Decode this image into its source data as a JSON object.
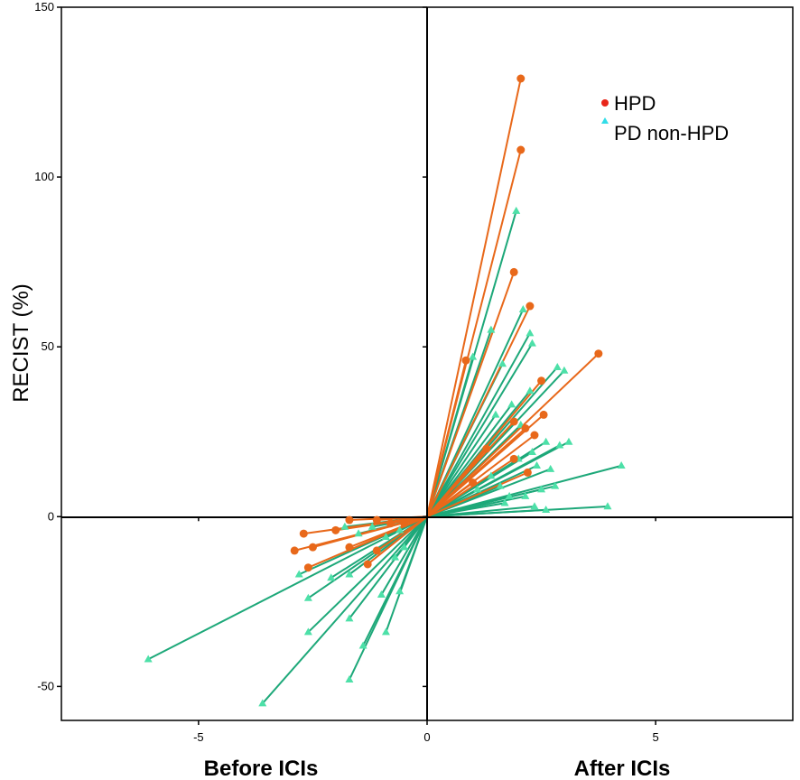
{
  "chart_data": {
    "type": "scatter",
    "title": "",
    "xlabel_left": "Before ICIs",
    "xlabel_right": "After ICIs",
    "ylabel": "RECIST (%)",
    "xlim": [
      -8,
      8
    ],
    "ylim": [
      -60,
      150
    ],
    "xticks": [
      -5,
      0,
      5
    ],
    "yticks": [
      -50,
      0,
      50,
      100,
      150
    ],
    "x_tick_labels": [
      "-5",
      "0",
      "5"
    ],
    "y_tick_labels": [
      "-50",
      "0",
      "50",
      "100",
      "150"
    ],
    "grid": false,
    "legend_position": "top-right",
    "series": [
      {
        "name": "HPD",
        "color": "#E8681A",
        "legend_color": "#E8261A",
        "marker": "circle",
        "before": [
          [
            -2.7,
            -5
          ],
          [
            -2.5,
            -9
          ],
          [
            -2.9,
            -10
          ],
          [
            -2.6,
            -15
          ],
          [
            -1.7,
            -9
          ],
          [
            -1.7,
            -1
          ],
          [
            -2.0,
            -4
          ],
          [
            -1.1,
            -1
          ],
          [
            -1.3,
            -14
          ],
          [
            -1.1,
            -10
          ],
          [
            -0.8,
            -2
          ],
          [
            -0.5,
            -2
          ]
        ],
        "after": [
          [
            2.05,
            129
          ],
          [
            2.05,
            108
          ],
          [
            1.9,
            72
          ],
          [
            2.25,
            62
          ],
          [
            0.85,
            46
          ],
          [
            3.75,
            48
          ],
          [
            2.5,
            40
          ],
          [
            1.9,
            28
          ],
          [
            2.55,
            30
          ],
          [
            2.15,
            26
          ],
          [
            2.35,
            24
          ],
          [
            1.9,
            17
          ],
          [
            2.2,
            13
          ],
          [
            1.3,
            20
          ],
          [
            1.0,
            10
          ]
        ]
      },
      {
        "name": "PD non-HPD",
        "color": "#1DA879",
        "marker_color": "#4DE0A8",
        "legend_color": "#32DDE8",
        "marker": "triangle",
        "before": [
          [
            -6.1,
            -42
          ],
          [
            -3.6,
            -55
          ],
          [
            -1.7,
            -48
          ],
          [
            -2.6,
            -34
          ],
          [
            -2.6,
            -24
          ],
          [
            -2.8,
            -17
          ],
          [
            -2.1,
            -18
          ],
          [
            -1.7,
            -17
          ],
          [
            -1.7,
            -30
          ],
          [
            -1.4,
            -38
          ],
          [
            -0.9,
            -34
          ],
          [
            -1.0,
            -23
          ],
          [
            -0.6,
            -22
          ],
          [
            -0.7,
            -12
          ],
          [
            -1.8,
            -3
          ],
          [
            -1.5,
            -5
          ],
          [
            -1.2,
            -3
          ],
          [
            -0.9,
            -6
          ],
          [
            -0.6,
            -4
          ],
          [
            -0.5,
            -9
          ]
        ],
        "after": [
          [
            1.95,
            90
          ],
          [
            2.1,
            61
          ],
          [
            2.25,
            54
          ],
          [
            2.3,
            51
          ],
          [
            1.4,
            55
          ],
          [
            1.0,
            47
          ],
          [
            1.65,
            45
          ],
          [
            2.85,
            44
          ],
          [
            3.0,
            43
          ],
          [
            2.25,
            37
          ],
          [
            1.85,
            33
          ],
          [
            1.5,
            30
          ],
          [
            2.05,
            27
          ],
          [
            2.6,
            22
          ],
          [
            3.1,
            22
          ],
          [
            2.9,
            21
          ],
          [
            2.3,
            19
          ],
          [
            2.0,
            17
          ],
          [
            2.4,
            15
          ],
          [
            2.7,
            14
          ],
          [
            4.25,
            15
          ],
          [
            2.8,
            9
          ],
          [
            2.5,
            8
          ],
          [
            1.8,
            6
          ],
          [
            2.15,
            6
          ],
          [
            1.7,
            4
          ],
          [
            2.35,
            3
          ],
          [
            2.6,
            2
          ],
          [
            3.95,
            3
          ],
          [
            1.4,
            12
          ],
          [
            1.1,
            8
          ],
          [
            1.6,
            9
          ]
        ]
      }
    ]
  }
}
